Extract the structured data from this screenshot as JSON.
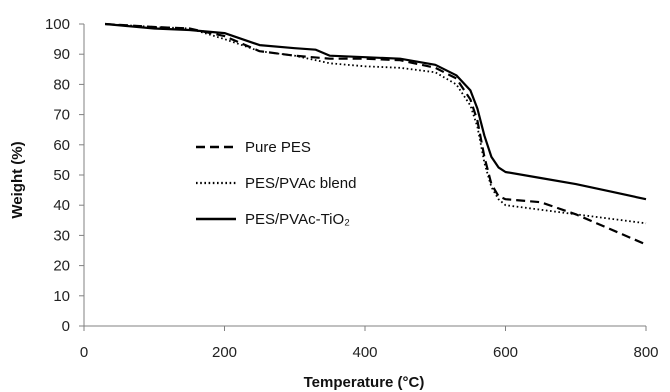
{
  "chart_data": {
    "type": "line",
    "title": "",
    "xlabel": "Temperature (°C)",
    "ylabel": "Weight (%)",
    "xlim": [
      0,
      800
    ],
    "ylim": [
      0,
      100
    ],
    "xticks": [
      0,
      200,
      400,
      600,
      800
    ],
    "yticks": [
      0,
      10,
      20,
      30,
      40,
      50,
      60,
      70,
      80,
      90,
      100
    ],
    "grid": false,
    "legend_position": "center-left",
    "series": [
      {
        "name": "Pure PES",
        "line_style": "dashed",
        "color": "#000000",
        "points": [
          [
            30,
            100
          ],
          [
            100,
            99
          ],
          [
            150,
            98.5
          ],
          [
            200,
            96
          ],
          [
            250,
            91
          ],
          [
            300,
            89.5
          ],
          [
            350,
            88.5
          ],
          [
            400,
            88.5
          ],
          [
            450,
            88
          ],
          [
            500,
            85.5
          ],
          [
            530,
            82
          ],
          [
            550,
            75
          ],
          [
            560,
            68
          ],
          [
            570,
            56
          ],
          [
            580,
            47
          ],
          [
            590,
            43
          ],
          [
            600,
            42
          ],
          [
            650,
            41
          ],
          [
            700,
            37
          ],
          [
            750,
            32
          ],
          [
            800,
            27
          ]
        ]
      },
      {
        "name": "PES/PVAc blend",
        "line_style": "dotted",
        "color": "#000000",
        "points": [
          [
            30,
            100
          ],
          [
            100,
            99
          ],
          [
            150,
            98.5
          ],
          [
            200,
            95
          ],
          [
            250,
            91
          ],
          [
            300,
            89.5
          ],
          [
            350,
            87
          ],
          [
            400,
            86
          ],
          [
            450,
            85.5
          ],
          [
            500,
            84
          ],
          [
            530,
            80
          ],
          [
            550,
            73
          ],
          [
            560,
            66
          ],
          [
            570,
            54
          ],
          [
            580,
            46
          ],
          [
            590,
            42
          ],
          [
            600,
            40
          ],
          [
            650,
            38.5
          ],
          [
            700,
            37
          ],
          [
            750,
            35.5
          ],
          [
            800,
            34
          ]
        ]
      },
      {
        "name": "PES/PVAc-TiO₂",
        "line_style": "solid",
        "color": "#000000",
        "points": [
          [
            30,
            100
          ],
          [
            100,
            98.5
          ],
          [
            150,
            98
          ],
          [
            200,
            97
          ],
          [
            250,
            93
          ],
          [
            300,
            92
          ],
          [
            330,
            91.5
          ],
          [
            350,
            89.5
          ],
          [
            400,
            89
          ],
          [
            450,
            88.5
          ],
          [
            500,
            86.5
          ],
          [
            530,
            83
          ],
          [
            550,
            78
          ],
          [
            560,
            72
          ],
          [
            570,
            63
          ],
          [
            580,
            56
          ],
          [
            590,
            52.5
          ],
          [
            600,
            51
          ],
          [
            650,
            49
          ],
          [
            700,
            47
          ],
          [
            750,
            44.5
          ],
          [
            800,
            42
          ]
        ]
      }
    ]
  }
}
